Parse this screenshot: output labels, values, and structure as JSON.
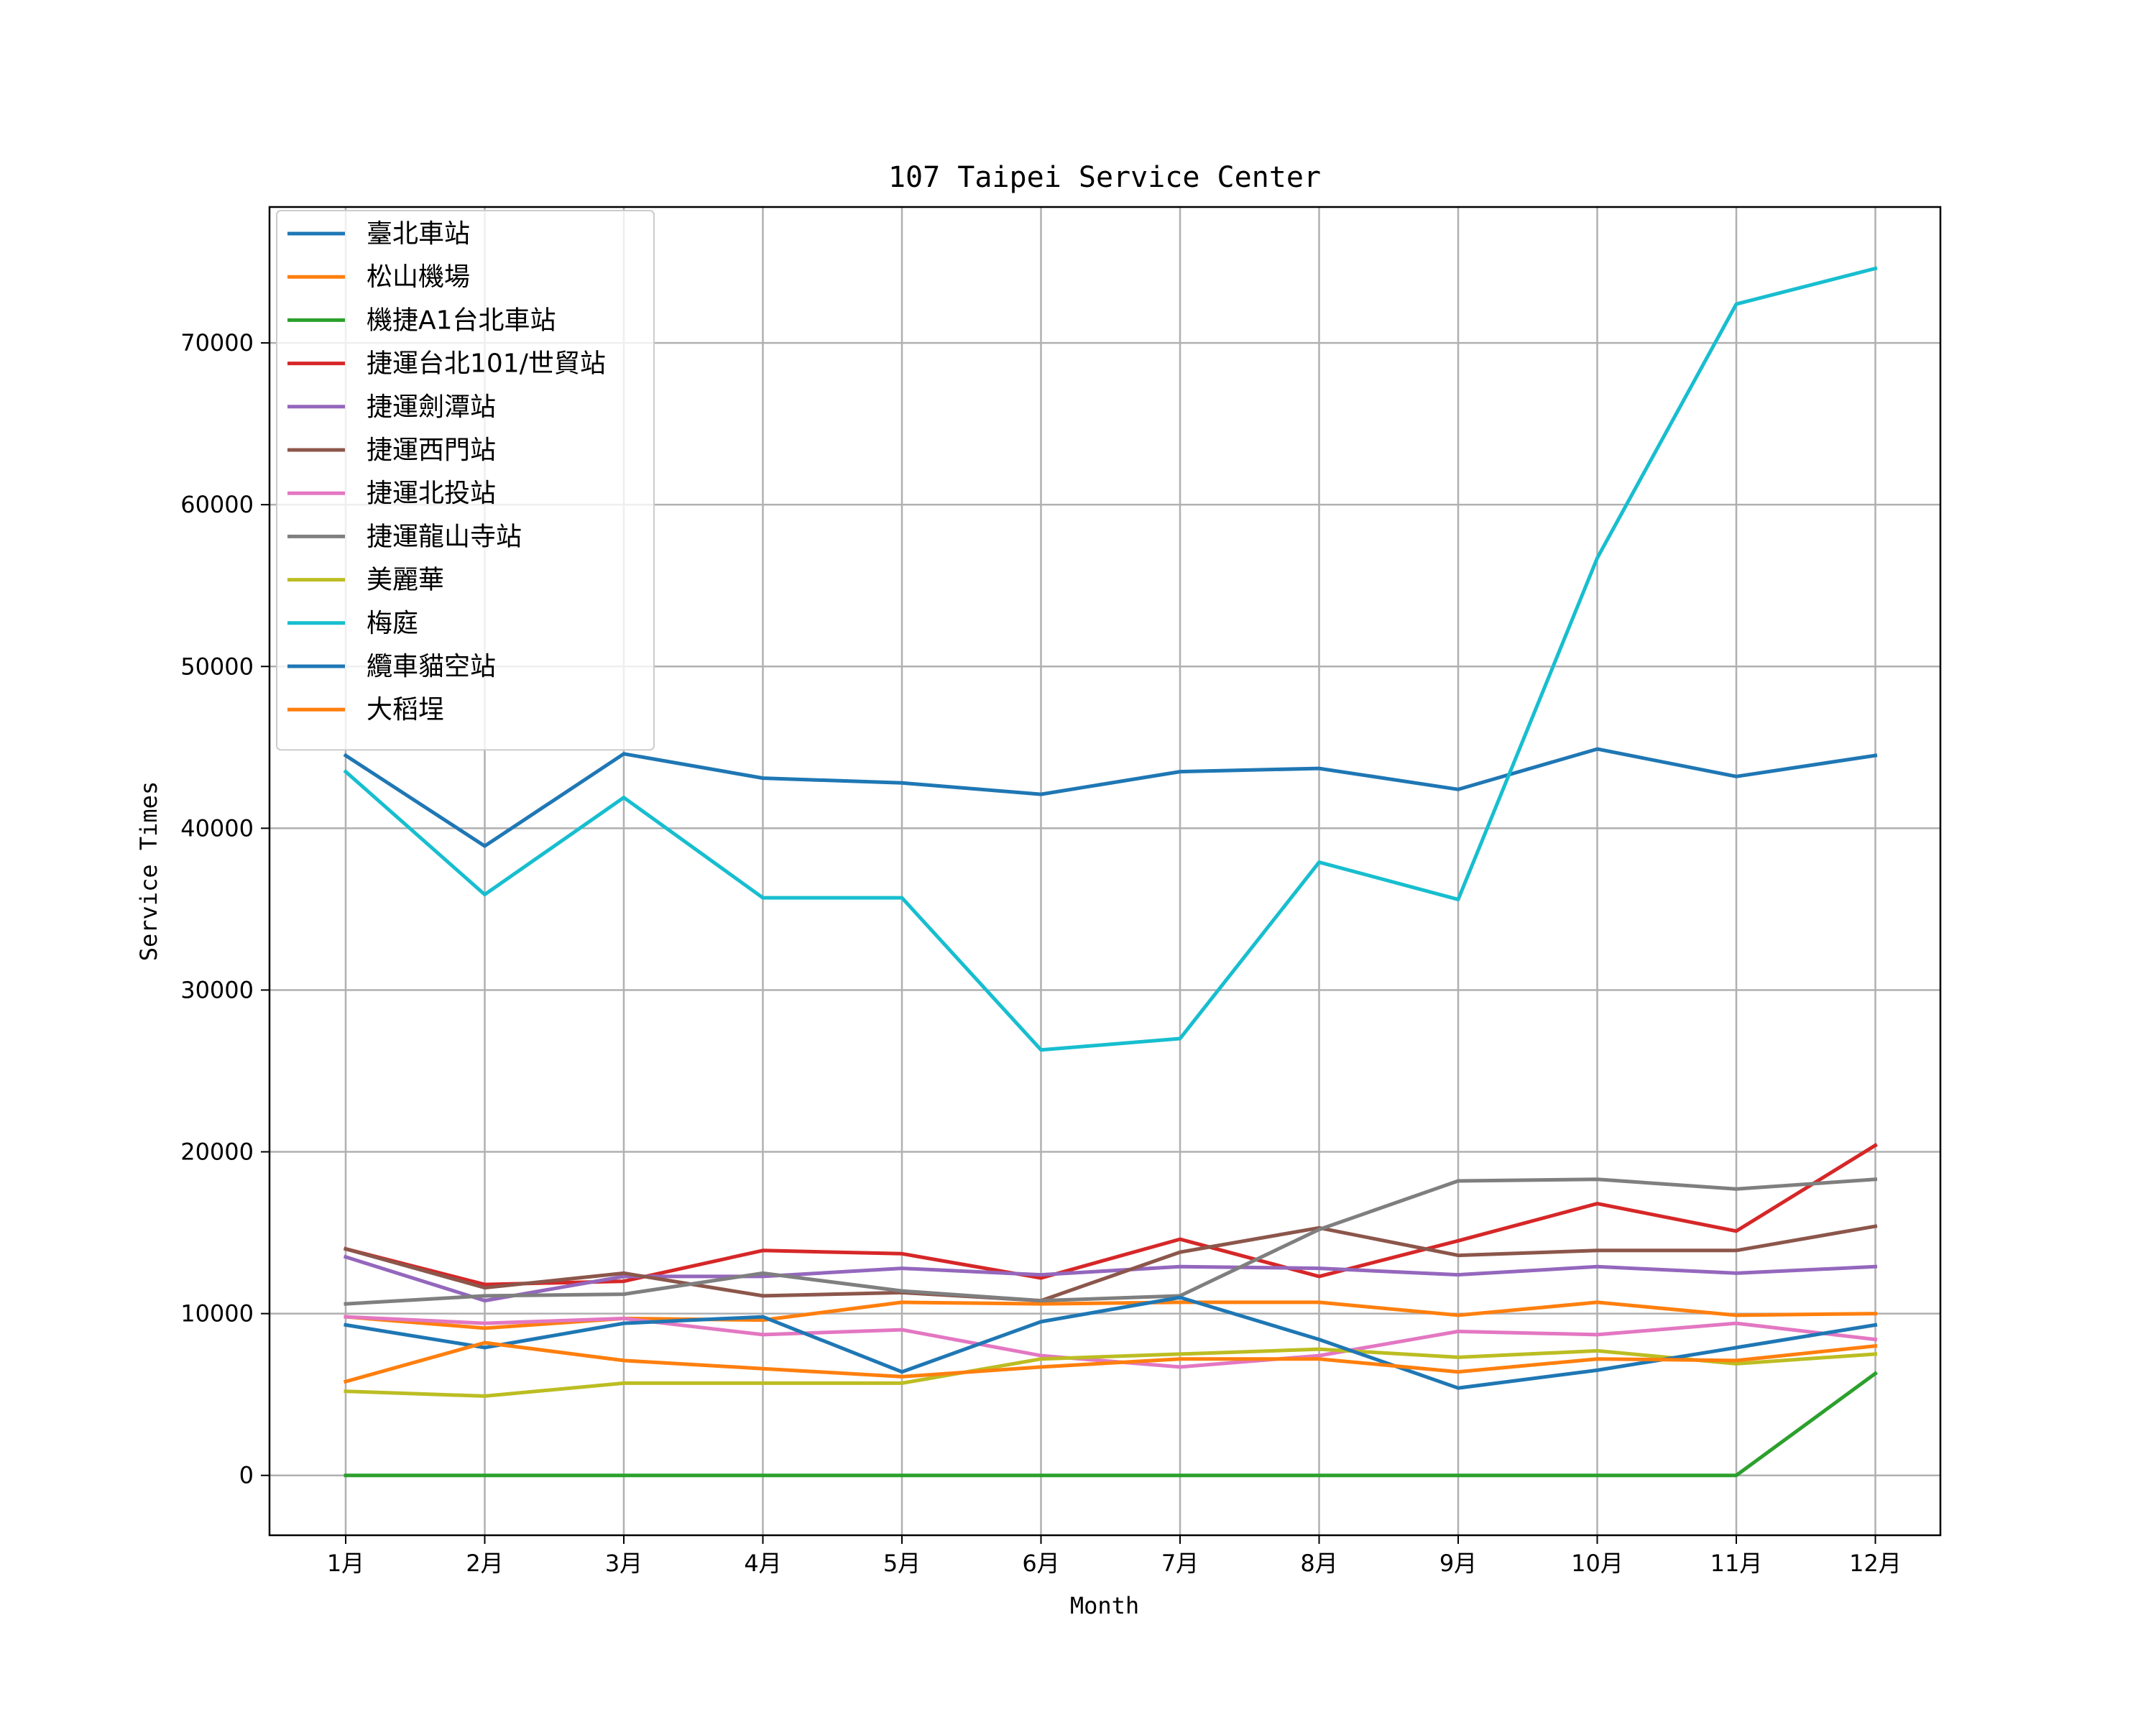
{
  "chart_data": {
    "type": "line",
    "title": "107 Taipei Service Center",
    "xlabel": "Month",
    "ylabel": "Service Times",
    "categories": [
      "1月",
      "2月",
      "3月",
      "4月",
      "5月",
      "6月",
      "7月",
      "8月",
      "9月",
      "10月",
      "11月",
      "12月"
    ],
    "ylim": [
      -3700,
      78400
    ],
    "yticks": [
      0,
      10000,
      20000,
      30000,
      40000,
      50000,
      60000,
      70000
    ],
    "grid": true,
    "legend_position": "top-left",
    "series": [
      {
        "name": "臺北車站",
        "color": "#1f77b4",
        "values": [
          44500,
          38900,
          44600,
          43100,
          42800,
          42100,
          43500,
          43700,
          42400,
          44900,
          43200,
          44500
        ]
      },
      {
        "name": "松山機場",
        "color": "#ff7f0e",
        "values": [
          9800,
          9100,
          9700,
          9600,
          10700,
          10600,
          10700,
          10700,
          9900,
          10700,
          9900,
          10000
        ]
      },
      {
        "name": "機捷A1台北車站",
        "color": "#2ca02c",
        "values": [
          0,
          0,
          0,
          0,
          0,
          0,
          0,
          0,
          0,
          0,
          0,
          6300
        ]
      },
      {
        "name": "捷運台北101/世貿站",
        "color": "#d62728",
        "values": [
          14000,
          11800,
          12000,
          13900,
          13700,
          12200,
          14600,
          12300,
          14500,
          16800,
          15100,
          20400
        ]
      },
      {
        "name": "捷運劍潭站",
        "color": "#9467bd",
        "values": [
          13500,
          10800,
          12300,
          12300,
          12800,
          12400,
          12900,
          12800,
          12400,
          12900,
          12500,
          12900
        ]
      },
      {
        "name": "捷運西門站",
        "color": "#8c564b",
        "values": [
          14000,
          11600,
          12500,
          11100,
          11300,
          10800,
          13800,
          15300,
          13600,
          13900,
          13900,
          15400
        ]
      },
      {
        "name": "捷運北投站",
        "color": "#e377c2",
        "values": [
          9800,
          9400,
          9700,
          8700,
          9000,
          7400,
          6700,
          7400,
          8900,
          8700,
          9400,
          8400
        ]
      },
      {
        "name": "捷運龍山寺站",
        "color": "#7f7f7f",
        "values": [
          10600,
          11100,
          11200,
          12500,
          11400,
          10800,
          11100,
          15200,
          18200,
          18300,
          17700,
          18300
        ]
      },
      {
        "name": "美麗華",
        "color": "#bcbd22",
        "values": [
          5200,
          4900,
          5700,
          5700,
          5700,
          7200,
          7500,
          7800,
          7300,
          7700,
          6900,
          7500
        ]
      },
      {
        "name": "梅庭",
        "color": "#17becf",
        "values": [
          43500,
          35900,
          41900,
          35700,
          35700,
          26300,
          27000,
          37900,
          35600,
          56700,
          72400,
          74600
        ]
      },
      {
        "name": "纜車貓空站",
        "color": "#1f77b4",
        "values": [
          9300,
          7900,
          9400,
          9800,
          6400,
          9500,
          11000,
          8400,
          5400,
          6500,
          7900,
          9300
        ]
      },
      {
        "name": "大稻埕",
        "color": "#ff7f0e",
        "values": [
          5800,
          8200,
          7100,
          6600,
          6100,
          6700,
          7200,
          7200,
          6400,
          7200,
          7100,
          8000
        ]
      }
    ]
  }
}
